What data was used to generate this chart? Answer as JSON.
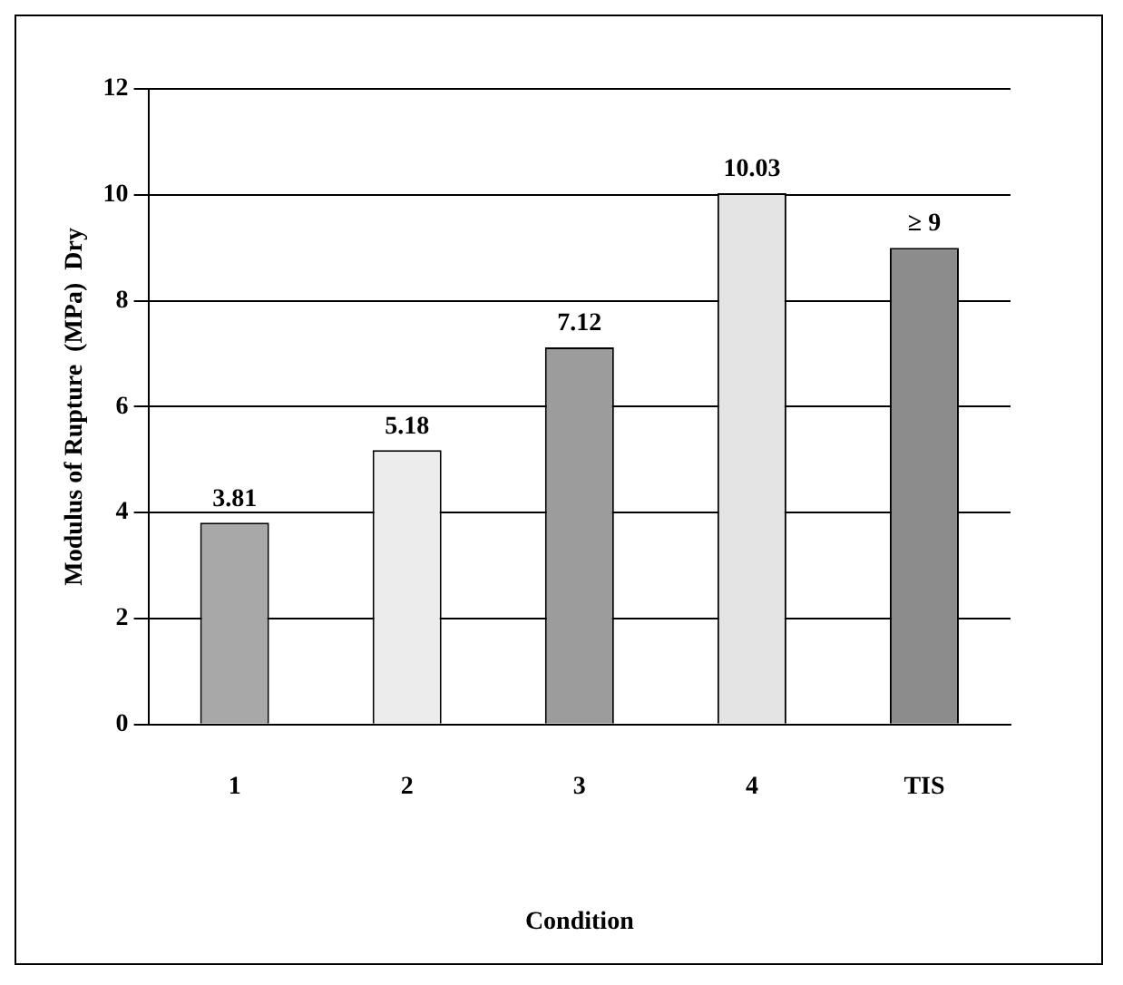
{
  "chart_data": {
    "type": "bar",
    "xlabel": "Condition",
    "ylabel": "Modulus of Rupture  (MPa)  Dry",
    "categories": [
      "1",
      "2",
      "3",
      "4",
      "TIS"
    ],
    "values": [
      3.81,
      5.18,
      7.12,
      10.03,
      9
    ],
    "value_labels": [
      "3.81",
      "5.18",
      "7.12",
      "10.03",
      "≥ 9"
    ],
    "colors": [
      "#a8a8a8",
      "#ececec",
      "#9c9c9c",
      "#e4e4e4",
      "#8c8c8c"
    ],
    "ylim": [
      0,
      12
    ],
    "yticks": [
      0,
      2,
      4,
      6,
      8,
      10,
      12
    ],
    "grid": "y",
    "legend": false
  }
}
